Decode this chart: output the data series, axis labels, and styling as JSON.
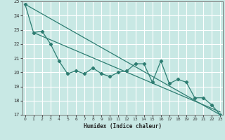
{
  "xlabel": "Humidex (Indice chaleur)",
  "xlim": [
    -0.3,
    23.3
  ],
  "ylim": [
    17,
    25
  ],
  "yticks": [
    17,
    18,
    19,
    20,
    21,
    22,
    23,
    24,
    25
  ],
  "xticks": [
    0,
    1,
    2,
    3,
    4,
    5,
    6,
    7,
    8,
    9,
    10,
    11,
    12,
    13,
    14,
    15,
    16,
    17,
    18,
    19,
    20,
    21,
    22,
    23
  ],
  "bg_color": "#c8e8e4",
  "grid_color": "#b0d0cc",
  "line_color": "#2e7d72",
  "data_x": [
    0,
    1,
    2,
    3,
    4,
    5,
    6,
    7,
    8,
    9,
    10,
    11,
    12,
    13,
    14,
    15,
    16,
    17,
    18,
    19,
    20,
    21,
    22,
    23
  ],
  "data_y": [
    24.8,
    22.8,
    22.9,
    22.0,
    20.8,
    19.9,
    20.1,
    19.9,
    20.3,
    19.9,
    19.7,
    20.0,
    20.1,
    20.6,
    20.6,
    19.3,
    20.8,
    19.2,
    19.5,
    19.3,
    18.2,
    18.2,
    17.7,
    17.0
  ],
  "line1_x": [
    0,
    23
  ],
  "line1_y": [
    24.8,
    17.0
  ],
  "line2_x": [
    1,
    23
  ],
  "line2_y": [
    22.8,
    17.2
  ]
}
